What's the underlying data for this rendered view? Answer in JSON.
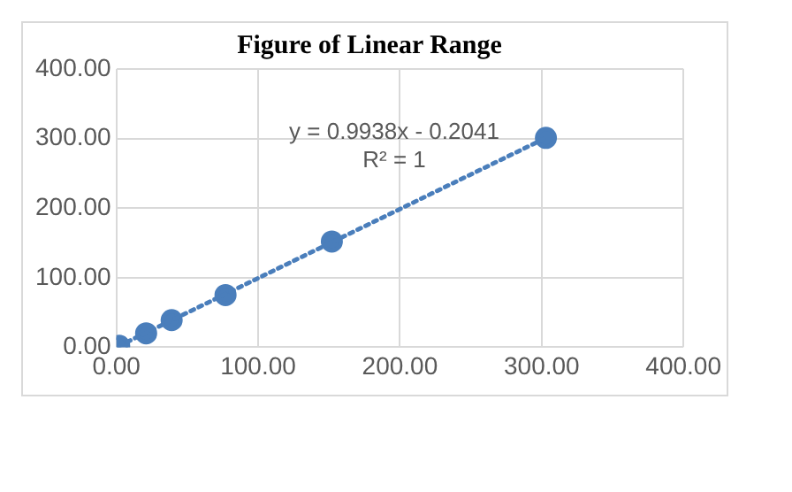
{
  "chart_data": {
    "type": "scatter",
    "title": "Figure of Linear Range",
    "xlim": [
      0,
      400
    ],
    "xticks": [
      {
        "value": 0,
        "label": "0.00"
      },
      {
        "value": 100,
        "label": "100.00"
      },
      {
        "value": 200,
        "label": "200.00"
      },
      {
        "value": 300,
        "label": "300.00"
      },
      {
        "value": 400,
        "label": "400.00"
      }
    ],
    "ylim": [
      0,
      400
    ],
    "yticks": [
      {
        "value": 0,
        "label": "0.00"
      },
      {
        "value": 100,
        "label": "100.00"
      },
      {
        "value": 200,
        "label": "200.00"
      },
      {
        "value": 300,
        "label": "300.00"
      },
      {
        "value": 400,
        "label": "400.00"
      }
    ],
    "grid": true,
    "marker": "circle",
    "series": [
      {
        "type": "line",
        "color": "#4a7ebb",
        "x": [
          2,
          303
        ],
        "values": [
          2,
          301
        ],
        "marker": "none",
        "line_style": "dotted"
      },
      {
        "color": "#4a7ebb",
        "x": [
          2,
          21,
          39,
          77,
          152,
          303
        ],
        "values": [
          2,
          20,
          39,
          75,
          152,
          301
        ]
      }
    ],
    "annotations": [
      "y = 0.9938x - 0.2041",
      "R² = 1"
    ]
  }
}
